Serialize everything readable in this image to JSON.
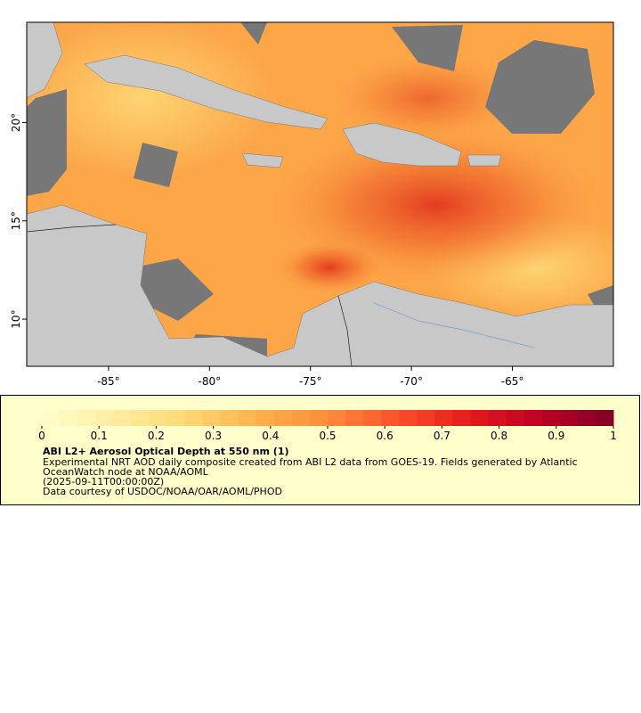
{
  "map": {
    "xlim": [
      -89.05,
      -60
    ],
    "ylim": [
      7.6,
      25.1
    ],
    "xticks": [
      {
        "value": -85,
        "label": "-85°"
      },
      {
        "value": -80,
        "label": "-80°"
      },
      {
        "value": -75,
        "label": "-75°"
      },
      {
        "value": -70,
        "label": "-70°"
      },
      {
        "value": -65,
        "label": "-65°"
      }
    ],
    "yticks": [
      {
        "value": 10,
        "label": "10°"
      },
      {
        "value": 15,
        "label": "15°"
      },
      {
        "value": 20,
        "label": "20°"
      }
    ]
  },
  "legend": {
    "range": [
      0,
      1
    ],
    "ticks": [
      0,
      0.1,
      0.2,
      0.3,
      0.4,
      0.5,
      0.6,
      0.7,
      0.8,
      0.9,
      1
    ],
    "palette": [
      "#ffffcc",
      "#ffeda0",
      "#fed976",
      "#feb24c",
      "#fd8d3c",
      "#fc4e2a",
      "#e31a1c",
      "#bd0026",
      "#800026"
    ],
    "title": "ABI L2+ Aerosol Optical Depth at 550 nm (1)",
    "lines": [
      "Experimental NRT AOD daily composite created from ABI L2 data from GOES-19. Fields generated by Atlantic",
      "OceanWatch node at NOAA/AOML",
      "(2025-09-11T00:00:00Z)",
      "Data courtesy of USDOC/NOAA/OAR/AOML/PHOD"
    ]
  }
}
